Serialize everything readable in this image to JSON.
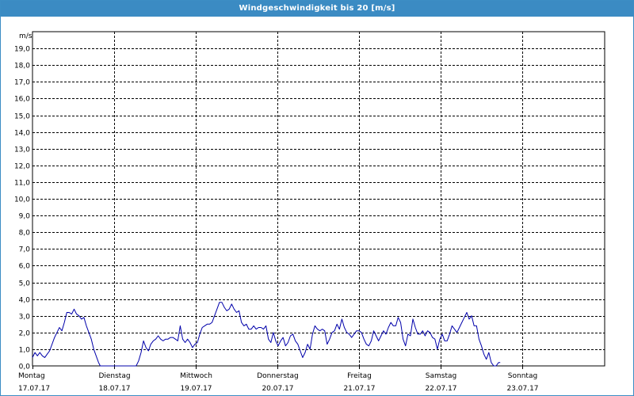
{
  "window": {
    "title": "Windgeschwindigkeit bis 20 [m/s]"
  },
  "colors": {
    "titlebar": "#3b8bc3",
    "series": "#0000aa",
    "grid": "#000000"
  },
  "chart_data": {
    "type": "line",
    "title": "Windgeschwindigkeit bis 20 [m/s]",
    "ylabel": "m/s",
    "ylim": [
      0,
      20
    ],
    "y_ticks": [
      "0,0",
      "1,0",
      "2,0",
      "3,0",
      "4,0",
      "5,0",
      "6,0",
      "7,0",
      "8,0",
      "9,0",
      "10,0",
      "11,0",
      "12,0",
      "13,0",
      "14,0",
      "15,0",
      "16,0",
      "17,0",
      "18,0",
      "19,0"
    ],
    "grid": true,
    "x_range_days": [
      0,
      7
    ],
    "day_labels": [
      {
        "day": "Montag",
        "date": "17.07.17"
      },
      {
        "day": "Dienstag",
        "date": "18.07.17"
      },
      {
        "day": "Mittwoch",
        "date": "19.07.17"
      },
      {
        "day": "Donnerstag",
        "date": "20.07.17"
      },
      {
        "day": "Freitag",
        "date": "21.07.17"
      },
      {
        "day": "Samstag",
        "date": "22.07.17"
      },
      {
        "day": "Sonntag",
        "date": "23.07.17"
      }
    ],
    "series": [
      {
        "values": [
          [
            0.0,
            0.5
          ],
          [
            0.03,
            0.8
          ],
          [
            0.06,
            0.6
          ],
          [
            0.09,
            0.8
          ],
          [
            0.12,
            0.6
          ],
          [
            0.15,
            0.5
          ],
          [
            0.18,
            0.7
          ],
          [
            0.21,
            0.9
          ],
          [
            0.24,
            1.3
          ],
          [
            0.27,
            1.7
          ],
          [
            0.3,
            2.0
          ],
          [
            0.33,
            2.3
          ],
          [
            0.36,
            2.1
          ],
          [
            0.39,
            2.6
          ],
          [
            0.42,
            3.2
          ],
          [
            0.45,
            3.2
          ],
          [
            0.48,
            3.1
          ],
          [
            0.51,
            3.4
          ],
          [
            0.54,
            3.1
          ],
          [
            0.57,
            3.0
          ],
          [
            0.6,
            2.8
          ],
          [
            0.63,
            2.9
          ],
          [
            0.66,
            2.4
          ],
          [
            0.69,
            2.0
          ],
          [
            0.72,
            1.6
          ],
          [
            0.75,
            1.0
          ],
          [
            0.78,
            0.6
          ],
          [
            0.81,
            0.2
          ],
          [
            0.83,
            0.0
          ],
          [
            1.27,
            0.0
          ],
          [
            1.3,
            0.3
          ],
          [
            1.33,
            0.8
          ],
          [
            1.36,
            1.5
          ],
          [
            1.39,
            1.1
          ],
          [
            1.42,
            0.9
          ],
          [
            1.45,
            1.3
          ],
          [
            1.48,
            1.5
          ],
          [
            1.51,
            1.6
          ],
          [
            1.54,
            1.8
          ],
          [
            1.57,
            1.6
          ],
          [
            1.6,
            1.5
          ],
          [
            1.63,
            1.6
          ],
          [
            1.66,
            1.6
          ],
          [
            1.69,
            1.7
          ],
          [
            1.72,
            1.7
          ],
          [
            1.75,
            1.6
          ],
          [
            1.78,
            1.5
          ],
          [
            1.81,
            2.4
          ],
          [
            1.84,
            1.6
          ],
          [
            1.87,
            1.4
          ],
          [
            1.9,
            1.6
          ],
          [
            1.93,
            1.4
          ],
          [
            1.96,
            1.1
          ],
          [
            1.99,
            1.3
          ],
          [
            2.02,
            1.4
          ],
          [
            2.05,
            1.9
          ],
          [
            2.08,
            2.3
          ],
          [
            2.11,
            2.4
          ],
          [
            2.14,
            2.5
          ],
          [
            2.17,
            2.5
          ],
          [
            2.2,
            2.6
          ],
          [
            2.23,
            3.0
          ],
          [
            2.26,
            3.4
          ],
          [
            2.29,
            3.8
          ],
          [
            2.32,
            3.8
          ],
          [
            2.35,
            3.5
          ],
          [
            2.38,
            3.3
          ],
          [
            2.41,
            3.4
          ],
          [
            2.44,
            3.7
          ],
          [
            2.47,
            3.4
          ],
          [
            2.5,
            3.2
          ],
          [
            2.53,
            3.3
          ],
          [
            2.56,
            2.6
          ],
          [
            2.59,
            2.4
          ],
          [
            2.62,
            2.5
          ],
          [
            2.65,
            2.2
          ],
          [
            2.68,
            2.2
          ],
          [
            2.71,
            2.4
          ],
          [
            2.74,
            2.2
          ],
          [
            2.77,
            2.3
          ],
          [
            2.8,
            2.3
          ],
          [
            2.83,
            2.2
          ],
          [
            2.86,
            2.4
          ],
          [
            2.89,
            1.6
          ],
          [
            2.92,
            1.4
          ],
          [
            2.95,
            2.0
          ],
          [
            2.98,
            1.5
          ],
          [
            3.01,
            1.2
          ],
          [
            3.04,
            1.5
          ],
          [
            3.07,
            1.7
          ],
          [
            3.1,
            1.2
          ],
          [
            3.13,
            1.4
          ],
          [
            3.16,
            1.8
          ],
          [
            3.19,
            1.9
          ],
          [
            3.22,
            1.5
          ],
          [
            3.25,
            1.3
          ],
          [
            3.28,
            0.9
          ],
          [
            3.31,
            0.5
          ],
          [
            3.34,
            0.8
          ],
          [
            3.37,
            1.3
          ],
          [
            3.4,
            1.0
          ],
          [
            3.43,
            1.9
          ],
          [
            3.46,
            2.4
          ],
          [
            3.49,
            2.2
          ],
          [
            3.52,
            2.1
          ],
          [
            3.55,
            2.2
          ],
          [
            3.58,
            2.1
          ],
          [
            3.61,
            1.3
          ],
          [
            3.64,
            1.6
          ],
          [
            3.67,
            2.0
          ],
          [
            3.7,
            2.1
          ],
          [
            3.73,
            2.5
          ],
          [
            3.76,
            2.2
          ],
          [
            3.79,
            2.8
          ],
          [
            3.82,
            2.3
          ],
          [
            3.85,
            2.0
          ],
          [
            3.88,
            1.9
          ],
          [
            3.91,
            1.7
          ],
          [
            3.94,
            1.9
          ],
          [
            3.97,
            2.1
          ],
          [
            4.0,
            2.1
          ],
          [
            4.03,
            2.0
          ],
          [
            4.06,
            1.6
          ],
          [
            4.09,
            1.3
          ],
          [
            4.12,
            1.2
          ],
          [
            4.15,
            1.5
          ],
          [
            4.18,
            2.1
          ],
          [
            4.21,
            1.8
          ],
          [
            4.24,
            1.5
          ],
          [
            4.27,
            1.8
          ],
          [
            4.3,
            2.1
          ],
          [
            4.33,
            1.9
          ],
          [
            4.36,
            2.3
          ],
          [
            4.39,
            2.6
          ],
          [
            4.42,
            2.4
          ],
          [
            4.45,
            2.4
          ],
          [
            4.48,
            2.9
          ],
          [
            4.51,
            2.6
          ],
          [
            4.54,
            1.6
          ],
          [
            4.57,
            1.2
          ],
          [
            4.6,
            1.9
          ],
          [
            4.63,
            1.8
          ],
          [
            4.66,
            2.8
          ],
          [
            4.69,
            2.3
          ],
          [
            4.72,
            1.9
          ],
          [
            4.75,
            1.9
          ],
          [
            4.78,
            2.1
          ],
          [
            4.81,
            1.8
          ],
          [
            4.84,
            2.1
          ],
          [
            4.87,
            2.0
          ],
          [
            4.9,
            1.7
          ],
          [
            4.93,
            1.6
          ],
          [
            4.96,
            1.0
          ],
          [
            4.99,
            1.6
          ],
          [
            5.02,
            1.9
          ],
          [
            5.05,
            1.5
          ],
          [
            5.08,
            1.5
          ],
          [
            5.11,
            1.9
          ],
          [
            5.14,
            2.4
          ],
          [
            5.17,
            2.2
          ],
          [
            5.2,
            2.0
          ],
          [
            5.23,
            2.3
          ],
          [
            5.26,
            2.6
          ],
          [
            5.29,
            2.9
          ],
          [
            5.32,
            3.2
          ],
          [
            5.35,
            2.8
          ],
          [
            5.38,
            3.0
          ],
          [
            5.41,
            2.4
          ],
          [
            5.44,
            2.4
          ],
          [
            5.47,
            1.6
          ],
          [
            5.5,
            1.2
          ],
          [
            5.53,
            0.7
          ],
          [
            5.56,
            0.4
          ],
          [
            5.59,
            0.8
          ],
          [
            5.62,
            0.2
          ],
          [
            5.65,
            0.0
          ],
          [
            5.68,
            0.0
          ],
          [
            5.71,
            0.2
          ],
          [
            5.73,
            0.2
          ]
        ]
      }
    ]
  }
}
